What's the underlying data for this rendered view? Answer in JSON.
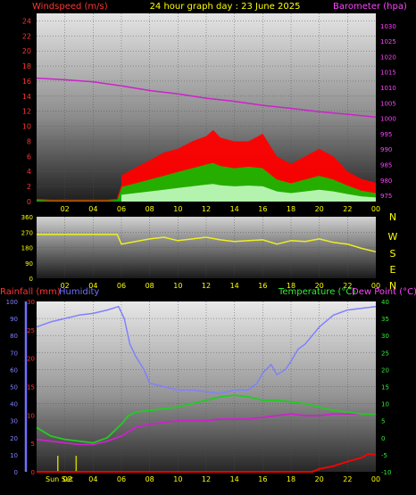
{
  "colors": {
    "wind": "#ff0000",
    "gust": "#ff0000",
    "windAvg": "#00cc00",
    "windLight": "#ccffcc",
    "baro": "#cc22cc",
    "dir": "#eeee22",
    "humidity": "#8080ff",
    "temperature": "#22cc22",
    "dewpoint": "#cc22cc",
    "rain": "#ff0000",
    "text_yellow": "#ffff00",
    "text_pink": "#ff44ff",
    "text_green": "#33ee33",
    "text_red": "#ff3333",
    "text_blue": "#6f6fff",
    "sunset": "#cccc00"
  },
  "header": {
    "left": "Windspeed (m/s)",
    "center": "24 hour graph day : 23 June 2025",
    "right": "Barometer (hpa)"
  },
  "mid_header": {
    "left": "Rainfall (mm)",
    "left2": "Humidity",
    "right": "Temperature (°C)",
    "right2": "Dew Point (°C)"
  },
  "sunset_label": "Sun Set",
  "chart_data": [
    {
      "type": "line",
      "title": "24 hour graph day : 23 June 2025",
      "x_ticks": [
        "02",
        "04",
        "06",
        "08",
        "10",
        "12",
        "14",
        "16",
        "18",
        "20",
        "22",
        "00"
      ],
      "y_left": {
        "label": "Windspeed (m/s)",
        "ticks": [
          "0",
          "2",
          "4",
          "6",
          "8",
          "10",
          "12",
          "14",
          "16",
          "18",
          "20",
          "22",
          "24"
        ],
        "range": [
          0,
          25
        ]
      },
      "y_right": {
        "label": "Barometer (hpa)",
        "ticks": [
          "975",
          "980",
          "985",
          "990",
          "995",
          "1000",
          "1005",
          "1010",
          "1015",
          "1020",
          "1025",
          "1030"
        ],
        "range": [
          973,
          1034
        ]
      },
      "series": [
        {
          "name": "Barometer (hpa)",
          "x": [
            0,
            2,
            4,
            6,
            8,
            10,
            12,
            14,
            16,
            18,
            20,
            22,
            24
          ],
          "values": [
            1013,
            1012.5,
            1011.8,
            1010.5,
            1009,
            1007.9,
            1006.5,
            1005.5,
            1004.2,
            1003.2,
            1002.1,
            1001.3,
            1000.4
          ]
        },
        {
          "name": "Windspeed (m/s)",
          "x": [
            0,
            1,
            2,
            3,
            4,
            5,
            5.7,
            6,
            7,
            8,
            9,
            10,
            11,
            12,
            12.5,
            13,
            14,
            15,
            16,
            17,
            18,
            19,
            20,
            21,
            22,
            23,
            24
          ],
          "values": [
            0.3,
            0.2,
            0.2,
            0.2,
            0.2,
            0.2,
            0.3,
            2,
            2.5,
            3,
            3.5,
            4,
            4.5,
            5,
            5.2,
            4.8,
            4.5,
            4.7,
            4.5,
            3,
            2.5,
            3,
            3.5,
            3,
            2.2,
            1.5,
            1.2
          ]
        },
        {
          "name": "Gust",
          "x": [
            6,
            7,
            8,
            9,
            10,
            11,
            12,
            12.5,
            13,
            14,
            15,
            16,
            17,
            18,
            19,
            20,
            21,
            22,
            23,
            24
          ],
          "values": [
            3.5,
            4.5,
            5.5,
            6.5,
            7,
            8,
            8.7,
            9.5,
            8.5,
            8,
            8,
            9,
            6,
            5,
            6,
            7,
            6,
            4,
            3,
            2.5
          ]
        }
      ]
    },
    {
      "type": "line",
      "x_ticks": [
        "02",
        "04",
        "06",
        "08",
        "10",
        "12",
        "14",
        "16",
        "18",
        "20",
        "22",
        "00"
      ],
      "y_left": {
        "ticks": [
          "0",
          "90",
          "180",
          "270",
          "360"
        ],
        "range": [
          0,
          360
        ]
      },
      "y_right": {
        "ticks": [
          "N",
          "W",
          "S",
          "E",
          "N"
        ]
      },
      "series": [
        {
          "name": "Wind direction",
          "x": [
            0,
            2,
            4,
            5.7,
            6,
            7,
            8,
            9,
            10,
            11,
            12,
            13,
            14,
            15,
            16,
            17,
            18,
            19,
            20,
            21,
            22,
            23,
            24
          ],
          "values": [
            256,
            256,
            256,
            256,
            200,
            215,
            230,
            240,
            220,
            230,
            240,
            225,
            215,
            220,
            225,
            200,
            220,
            215,
            230,
            210,
            200,
            175,
            155
          ]
        }
      ]
    },
    {
      "type": "line",
      "x_ticks": [
        "Sun Set",
        "02",
        "04",
        "06",
        "08",
        "10",
        "12",
        "14",
        "16",
        "18",
        "20",
        "22",
        "00"
      ],
      "y_left_humidity": {
        "label": "Humidity",
        "ticks": [
          "0",
          "10",
          "20",
          "30",
          "40",
          "50",
          "60",
          "70",
          "80",
          "90",
          "100"
        ],
        "range": [
          0,
          100
        ]
      },
      "y_left_rain": {
        "label": "Rainfall (mm)",
        "ticks": [
          "0",
          "5",
          "10",
          "15",
          "20",
          "25",
          "30"
        ],
        "range": [
          0,
          30
        ]
      },
      "y_right": {
        "label": "Temperature (°C) / Dew Point (°C)",
        "ticks": [
          "-10",
          "-5",
          "0",
          "5",
          "10",
          "15",
          "20",
          "25",
          "30",
          "35",
          "40"
        ],
        "range": [
          -10,
          40
        ]
      },
      "series": [
        {
          "name": "Humidity",
          "x": [
            0,
            1,
            2,
            3,
            4,
            5,
            5.8,
            6.2,
            6.6,
            7,
            7.6,
            8,
            9,
            10,
            11,
            12,
            13,
            14,
            15,
            15.6,
            16,
            16.6,
            17,
            17.6,
            18,
            18.5,
            19,
            19.5,
            20,
            21,
            22,
            23,
            24
          ],
          "values": [
            85,
            88,
            90,
            92,
            93,
            95,
            97,
            90,
            75,
            68,
            60,
            52,
            50,
            48,
            48,
            47,
            46,
            48,
            48,
            52,
            58,
            63,
            57,
            60,
            65,
            72,
            75,
            80,
            85,
            92,
            95,
            96,
            97
          ]
        },
        {
          "name": "Temperature (°C)",
          "x": [
            0,
            1,
            2,
            3,
            4,
            5,
            5.5,
            6,
            6.5,
            7,
            8,
            9,
            10,
            11,
            12,
            13,
            14,
            15,
            16,
            17,
            18,
            19,
            20,
            21,
            22,
            23,
            24
          ],
          "values": [
            3,
            0.5,
            -0.5,
            -1,
            -1.5,
            0,
            2,
            4,
            6.5,
            7.5,
            8,
            8.5,
            9,
            10,
            11,
            12,
            12.5,
            12,
            11,
            11,
            10.5,
            10,
            9,
            8,
            7.5,
            7,
            7
          ]
        },
        {
          "name": "Dew Point (°C)",
          "x": [
            0,
            1,
            2,
            3,
            4,
            5,
            6,
            7,
            8,
            9,
            10,
            11,
            12,
            13,
            14,
            15,
            16,
            17,
            18,
            19,
            20,
            21,
            22,
            23,
            24
          ],
          "values": [
            -0.5,
            -1,
            -1.5,
            -2,
            -2,
            -1,
            0.5,
            3,
            4,
            4.5,
            5,
            5,
            5,
            5.5,
            5.5,
            5.5,
            6,
            6.5,
            7,
            6.5,
            6.5,
            7,
            7,
            7,
            7
          ]
        },
        {
          "name": "Rainfall (mm)",
          "x": [
            0,
            19.5,
            20,
            21,
            22,
            23,
            23.5,
            24
          ],
          "values": [
            0,
            0,
            0.5,
            1,
            1.8,
            2.5,
            3.2,
            3.0
          ]
        }
      ]
    }
  ]
}
